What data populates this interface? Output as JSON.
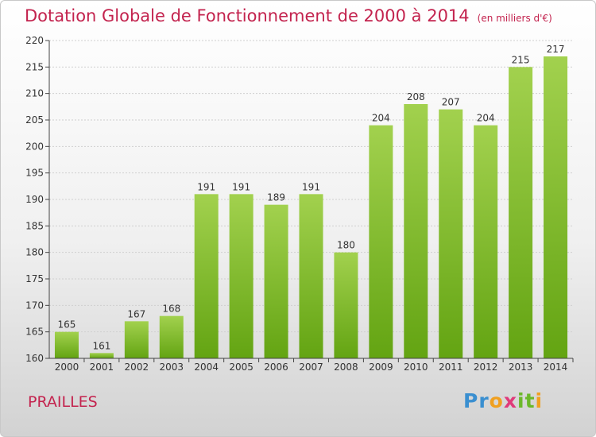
{
  "header": {
    "title": "Dotation Globale de Fonctionnement de 2000 à 2014",
    "unit": "(en milliers d'€)"
  },
  "footer": {
    "commune": "PRAILLES",
    "logo_letters": [
      "P",
      "r",
      "o",
      "x",
      "i",
      "t",
      "i"
    ],
    "logo_colors": [
      "#3a8fd0",
      "#3a8fd0",
      "#f0a020",
      "#e03a7a",
      "#6cb82a",
      "#6cb82a",
      "#f0a020"
    ]
  },
  "colors": {
    "bar_light": "#a2d14e",
    "bar_dark": "#63a412",
    "title": "#c3234e",
    "axis": "#444444",
    "grid": "#cfcfcf"
  },
  "chart_data": {
    "type": "bar",
    "title": "Dotation Globale de Fonctionnement de 2000 à 2014",
    "categories": [
      "2000",
      "2001",
      "2002",
      "2003",
      "2004",
      "2005",
      "2006",
      "2007",
      "2008",
      "2009",
      "2010",
      "2011",
      "2012",
      "2013",
      "2014"
    ],
    "values": [
      165,
      161,
      167,
      168,
      191,
      191,
      189,
      191,
      180,
      204,
      208,
      207,
      204,
      215,
      217
    ],
    "ylim": [
      160,
      220
    ],
    "yticks": [
      160,
      165,
      170,
      175,
      180,
      185,
      190,
      195,
      200,
      205,
      210,
      215,
      220
    ],
    "grid": true,
    "xlabel": "",
    "ylabel": ""
  }
}
